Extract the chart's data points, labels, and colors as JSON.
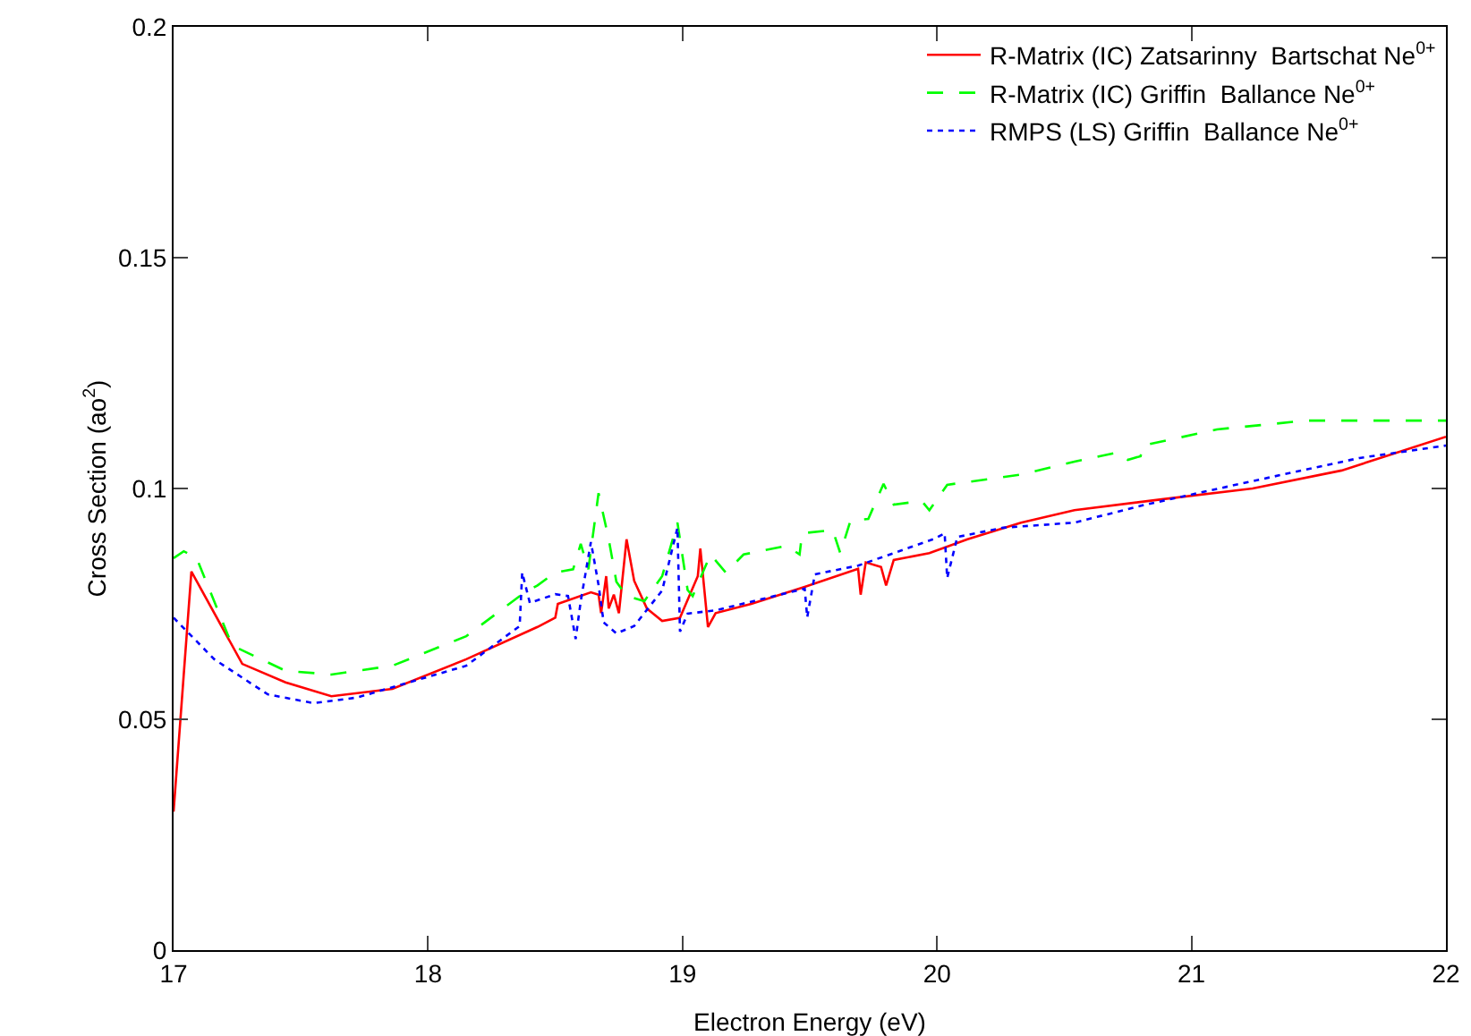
{
  "chart_data": {
    "type": "line",
    "xlabel": "Electron Energy (eV)",
    "ylabel": "Cross Section (ao$^{2}$)",
    "xlim": [
      17,
      22
    ],
    "ylim": [
      0,
      0.2
    ],
    "xticks": [
      17,
      18,
      19,
      20,
      21,
      22
    ],
    "yticks": [
      0,
      0.05,
      0.1,
      0.15,
      0.2
    ],
    "grid": false,
    "legend": "top right",
    "marker": "none",
    "series": [
      {
        "name": "R-Matrix (IC) Zatsarinny  Bartschat Ne$^{0+}$",
        "color": "#ff0000",
        "line_style": "solid",
        "x": [
          17.0,
          17.07,
          17.27,
          17.44,
          17.62,
          17.86,
          18.15,
          18.43,
          18.5,
          18.51,
          18.64,
          18.67,
          18.68,
          18.7,
          18.71,
          18.73,
          18.75,
          18.78,
          18.81,
          18.86,
          18.92,
          18.99,
          19.06,
          19.07,
          19.1,
          19.13,
          19.27,
          19.48,
          19.69,
          19.7,
          19.72,
          19.78,
          19.8,
          19.83,
          19.97,
          20.12,
          20.33,
          20.54,
          20.89,
          21.24,
          21.59,
          22.0
        ],
        "values": [
          0.03,
          0.082,
          0.062,
          0.058,
          0.055,
          0.0566,
          0.063,
          0.07,
          0.072,
          0.075,
          0.0775,
          0.077,
          0.073,
          0.081,
          0.074,
          0.077,
          0.073,
          0.089,
          0.08,
          0.074,
          0.0713,
          0.072,
          0.081,
          0.087,
          0.07,
          0.073,
          0.075,
          0.0787,
          0.0826,
          0.077,
          0.084,
          0.083,
          0.079,
          0.0845,
          0.086,
          0.089,
          0.0926,
          0.0953,
          0.0977,
          0.1,
          0.1039,
          0.1112
        ]
      },
      {
        "name": "R-Matrix (IC) Griffin  Ballance Ne$^{0+}$",
        "color": "#00ff00",
        "line_style": "dashed",
        "x": [
          17.0,
          17.04,
          17.09,
          17.23,
          17.44,
          17.62,
          17.86,
          18.15,
          18.37,
          18.43,
          18.5,
          18.57,
          18.6,
          18.63,
          18.67,
          18.71,
          18.74,
          18.78,
          18.85,
          18.92,
          18.98,
          19.02,
          19.04,
          19.11,
          19.17,
          19.24,
          19.41,
          19.46,
          19.47,
          19.59,
          19.62,
          19.66,
          19.73,
          19.79,
          19.83,
          19.94,
          19.97,
          20.04,
          20.33,
          20.54,
          20.71,
          20.75,
          20.8,
          20.81,
          21.1,
          21.45,
          22.0
        ],
        "values": [
          0.0849,
          0.0864,
          0.085,
          0.066,
          0.0605,
          0.0597,
          0.0616,
          0.068,
          0.0771,
          0.079,
          0.0818,
          0.0825,
          0.088,
          0.0825,
          0.099,
          0.089,
          0.0798,
          0.0767,
          0.0756,
          0.081,
          0.0926,
          0.078,
          0.0767,
          0.0857,
          0.0818,
          0.0857,
          0.0876,
          0.0857,
          0.0903,
          0.091,
          0.086,
          0.093,
          0.0934,
          0.101,
          0.0965,
          0.0973,
          0.0953,
          0.1008,
          0.103,
          0.1058,
          0.1078,
          0.1062,
          0.107,
          0.1093,
          0.1128,
          0.1147,
          0.1147
        ]
      },
      {
        "name": "RMPS (LS) Griffin  Ballance Ne$^{0+}$",
        "color": "#0000ff",
        "line_style": "dotted",
        "x": [
          17.0,
          17.16,
          17.37,
          17.55,
          17.72,
          18.15,
          18.36,
          18.37,
          18.4,
          18.5,
          18.55,
          18.58,
          18.6,
          18.64,
          18.67,
          18.69,
          18.74,
          18.81,
          18.92,
          18.98,
          18.99,
          19.02,
          19.13,
          19.48,
          19.49,
          19.52,
          19.69,
          19.99,
          20.03,
          20.04,
          20.08,
          20.26,
          20.54,
          20.82,
          21.24,
          21.66,
          22.0
        ],
        "values": [
          0.072,
          0.063,
          0.0554,
          0.0535,
          0.0547,
          0.0616,
          0.0702,
          0.0818,
          0.0752,
          0.0771,
          0.0767,
          0.0674,
          0.0756,
          0.0884,
          0.0791,
          0.071,
          0.0686,
          0.0702,
          0.0779,
          0.0915,
          0.069,
          0.0729,
          0.0736,
          0.0783,
          0.0721,
          0.0814,
          0.0833,
          0.0891,
          0.0903,
          0.0806,
          0.0895,
          0.0915,
          0.0926,
          0.0965,
          0.1016,
          0.1066,
          0.1093
        ]
      }
    ]
  }
}
